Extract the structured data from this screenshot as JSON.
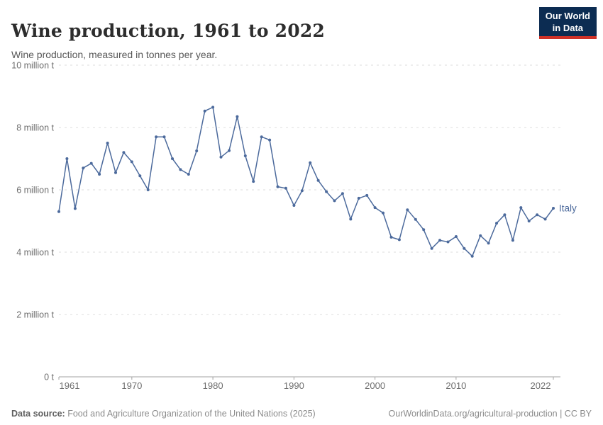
{
  "header": {
    "title": "Wine production, 1961 to 2022",
    "subtitle": "Wine production, measured in tonnes per year.",
    "logo_line1": "Our World",
    "logo_line2": "in Data"
  },
  "chart_data": {
    "type": "line",
    "title": "Wine production, 1961 to 2022",
    "entity": "Italy",
    "unit_label": "million tonnes per year",
    "grid": true,
    "xlim": [
      1961,
      2022
    ],
    "ylim": [
      0,
      10
    ],
    "x_ticks": [
      1961,
      1970,
      1980,
      1990,
      2000,
      2010,
      2022
    ],
    "y_ticks": [
      0,
      2,
      4,
      6,
      8,
      10
    ],
    "y_tick_labels": [
      "0 t",
      "2 million t",
      "4 million t",
      "6 million t",
      "8 million t",
      "10 million t"
    ],
    "years": [
      1961,
      1962,
      1963,
      1964,
      1965,
      1966,
      1967,
      1968,
      1969,
      1970,
      1971,
      1972,
      1973,
      1974,
      1975,
      1976,
      1977,
      1978,
      1979,
      1980,
      1981,
      1982,
      1983,
      1984,
      1985,
      1986,
      1987,
      1988,
      1989,
      1990,
      1991,
      1992,
      1993,
      1994,
      1995,
      1996,
      1997,
      1998,
      1999,
      2000,
      2001,
      2002,
      2003,
      2004,
      2005,
      2006,
      2007,
      2008,
      2009,
      2010,
      2011,
      2012,
      2013,
      2014,
      2015,
      2016,
      2017,
      2018,
      2019,
      2020,
      2021,
      2022
    ],
    "series": [
      {
        "name": "Italy",
        "values": [
          5.3,
          7.0,
          5.4,
          6.7,
          6.85,
          6.5,
          7.5,
          6.55,
          7.2,
          6.9,
          6.45,
          6.0,
          7.7,
          7.7,
          7.0,
          6.65,
          6.5,
          7.25,
          8.53,
          8.65,
          7.05,
          7.26,
          8.35,
          7.09,
          6.27,
          7.7,
          7.6,
          6.1,
          6.05,
          5.5,
          5.97,
          6.87,
          6.3,
          5.94,
          5.65,
          5.88,
          5.06,
          5.73,
          5.82,
          5.43,
          5.26,
          4.48,
          4.4,
          5.36,
          5.05,
          4.72,
          4.12,
          4.38,
          4.33,
          4.5,
          4.12,
          3.87,
          4.53,
          4.29,
          4.93,
          5.2,
          4.38,
          5.43,
          5.0,
          5.2,
          5.06,
          5.41
        ]
      }
    ],
    "legend_position": "end-of-line-label"
  },
  "colors": {
    "line": "#4c6a9c",
    "grid": "#dcdcdc",
    "axis": "#a3a3a3",
    "tick_text": "#6e6e6e",
    "logo_bg": "#0c2c52",
    "logo_red": "#cf3127"
  },
  "footer": {
    "source_label": "Data source:",
    "source_text": " Food and Agriculture Organization of the United Nations (2025)",
    "link_text": "OurWorldinData.org/agricultural-production | CC BY"
  }
}
